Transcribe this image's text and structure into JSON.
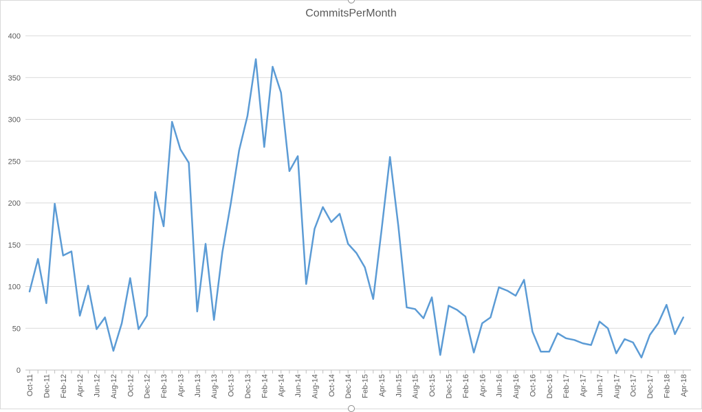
{
  "chart_data": {
    "type": "line",
    "title": "CommitsPerMonth",
    "xlabel": "",
    "ylabel": "",
    "ylim": [
      0,
      400
    ],
    "yticks": [
      0,
      50,
      100,
      150,
      200,
      250,
      300,
      350,
      400
    ],
    "grid": true,
    "legend": "none",
    "line_color": "#5b9bd5",
    "categories": [
      "Oct-11",
      "Nov-11",
      "Dec-11",
      "Jan-12",
      "Feb-12",
      "Mar-12",
      "Apr-12",
      "May-12",
      "Jun-12",
      "Jul-12",
      "Aug-12",
      "Sep-12",
      "Oct-12",
      "Nov-12",
      "Dec-12",
      "Jan-13",
      "Feb-13",
      "Mar-13",
      "Apr-13",
      "May-13",
      "Jun-13",
      "Jul-13",
      "Aug-13",
      "Sep-13",
      "Oct-13",
      "Nov-13",
      "Dec-13",
      "Jan-14",
      "Feb-14",
      "Mar-14",
      "Apr-14",
      "May-14",
      "Jun-14",
      "Jul-14",
      "Aug-14",
      "Sep-14",
      "Oct-14",
      "Nov-14",
      "Dec-14",
      "Jan-15",
      "Feb-15",
      "Mar-15",
      "Apr-15",
      "May-15",
      "Jun-15",
      "Jul-15",
      "Aug-15",
      "Sep-15",
      "Oct-15",
      "Nov-15",
      "Dec-15",
      "Jan-16",
      "Feb-16",
      "Mar-16",
      "Apr-16",
      "May-16",
      "Jun-16",
      "Jul-16",
      "Aug-16",
      "Sep-16",
      "Oct-16",
      "Nov-16",
      "Dec-16",
      "Jan-17",
      "Feb-17",
      "Mar-17",
      "Apr-17",
      "May-17",
      "Jun-17",
      "Jul-17",
      "Aug-17",
      "Sep-17",
      "Oct-17",
      "Nov-17",
      "Dec-17",
      "Jan-18",
      "Feb-18",
      "Mar-18",
      "Apr-18"
    ],
    "xtick_labels": [
      "Oct-11",
      "Dec-11",
      "Feb-12",
      "Apr-12",
      "Jun-12",
      "Aug-12",
      "Oct-12",
      "Dec-12",
      "Feb-13",
      "Apr-13",
      "Jun-13",
      "Aug-13",
      "Oct-13",
      "Dec-13",
      "Feb-14",
      "Apr-14",
      "Jun-14",
      "Aug-14",
      "Oct-14",
      "Dec-14",
      "Feb-15",
      "Apr-15",
      "Jun-15",
      "Aug-15",
      "Oct-15",
      "Dec-15",
      "Feb-16",
      "Apr-16",
      "Jun-16",
      "Aug-16",
      "Oct-16",
      "Dec-16",
      "Feb-17",
      "Apr-17",
      "Jun-17",
      "Aug-17",
      "Oct-17",
      "Dec-17",
      "Feb-18",
      "Apr-18"
    ],
    "series": [
      {
        "values": [
          94,
          133,
          80,
          199,
          137,
          142,
          65,
          101,
          49,
          63,
          23,
          56,
          110,
          49,
          65,
          213,
          172,
          297,
          264,
          248,
          70,
          151,
          60,
          141,
          199,
          263,
          304,
          372,
          267,
          363,
          332,
          238,
          256,
          103,
          169,
          195,
          177,
          187,
          151,
          140,
          123,
          85,
          168,
          255,
          172,
          75,
          73,
          62,
          87,
          18,
          77,
          72,
          64,
          21,
          56,
          63,
          99,
          95,
          89,
          108,
          46,
          22,
          22,
          44,
          38,
          36,
          32,
          30,
          58,
          50,
          20,
          37,
          33,
          15,
          42,
          56,
          78,
          43,
          63
        ]
      }
    ]
  }
}
